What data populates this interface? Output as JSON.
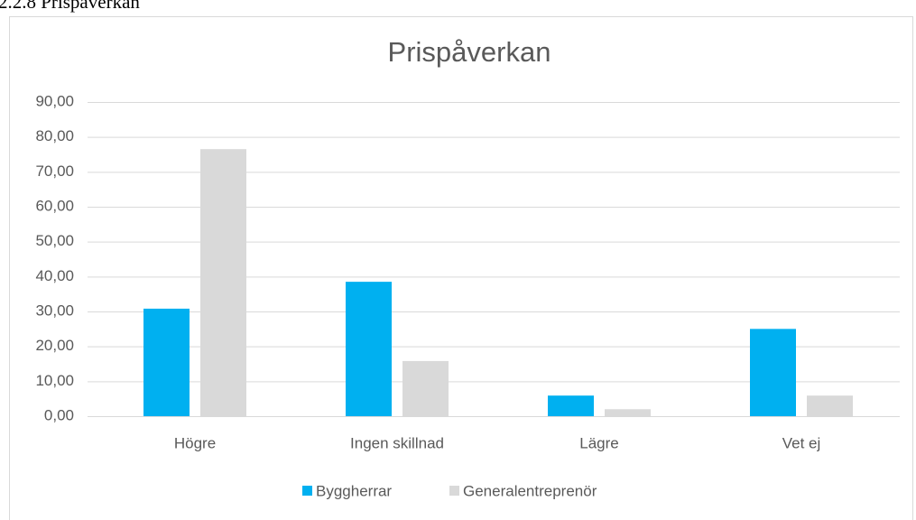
{
  "heading": "2.2.8 Prispåverkan",
  "chart_data": {
    "type": "bar",
    "title": "Prispåverkan",
    "categories": [
      "Högre",
      "Ingen skillnad",
      "Lägre",
      "Vet ej"
    ],
    "series": [
      {
        "name": "Byggherrar",
        "color": "#00b0f0",
        "values": [
          30.8,
          38.5,
          5.9,
          25.0
        ]
      },
      {
        "name": "Generalentreprenör",
        "color": "#d9d9d9",
        "values": [
          76.5,
          15.8,
          2.0,
          5.9
        ]
      }
    ],
    "ylim": [
      0,
      90
    ],
    "yticks": [
      {
        "value": 0,
        "label": "0,00"
      },
      {
        "value": 10,
        "label": "10,00"
      },
      {
        "value": 20,
        "label": "20,00"
      },
      {
        "value": 30,
        "label": "30,00"
      },
      {
        "value": 40,
        "label": "40,00"
      },
      {
        "value": 50,
        "label": "50,00"
      },
      {
        "value": 60,
        "label": "60,00"
      },
      {
        "value": 70,
        "label": "70,00"
      },
      {
        "value": 80,
        "label": "80,00"
      },
      {
        "value": 90,
        "label": "90,00"
      }
    ],
    "grid": true,
    "legend": "bottom"
  }
}
